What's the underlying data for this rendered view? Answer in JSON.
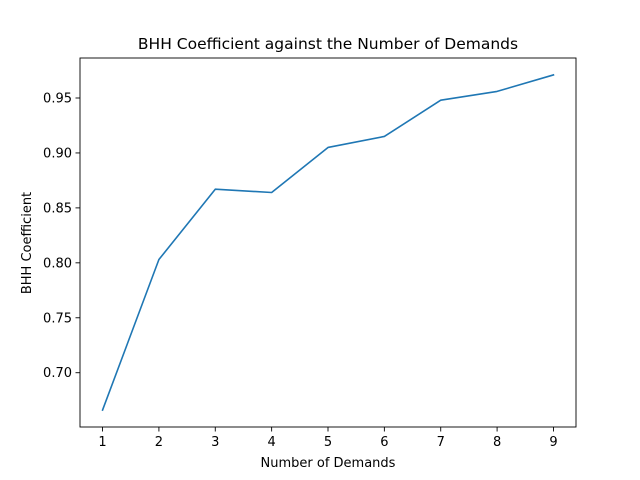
{
  "chart_data": {
    "type": "line",
    "title": "BHH Coefficient against the Number of Demands",
    "xlabel": "Number of Demands",
    "ylabel": "BHH Coefficient",
    "x": [
      1,
      2,
      3,
      4,
      5,
      6,
      7,
      8,
      9
    ],
    "series": [
      {
        "values": [
          0.666,
          0.803,
          0.867,
          0.864,
          0.905,
          0.915,
          0.948,
          0.956,
          0.971
        ],
        "color": "#1f77b4"
      }
    ],
    "xticks": [
      1,
      2,
      3,
      4,
      5,
      6,
      7,
      8,
      9
    ],
    "yticks": [
      0.7,
      0.75,
      0.8,
      0.85,
      0.9,
      0.95
    ],
    "ytick_labels": [
      "0.70",
      "0.75",
      "0.80",
      "0.85",
      "0.90",
      "0.95"
    ],
    "xlim": [
      0.6,
      9.4
    ],
    "ylim": [
      0.6506,
      0.9864
    ],
    "grid": false,
    "legend": "none"
  }
}
